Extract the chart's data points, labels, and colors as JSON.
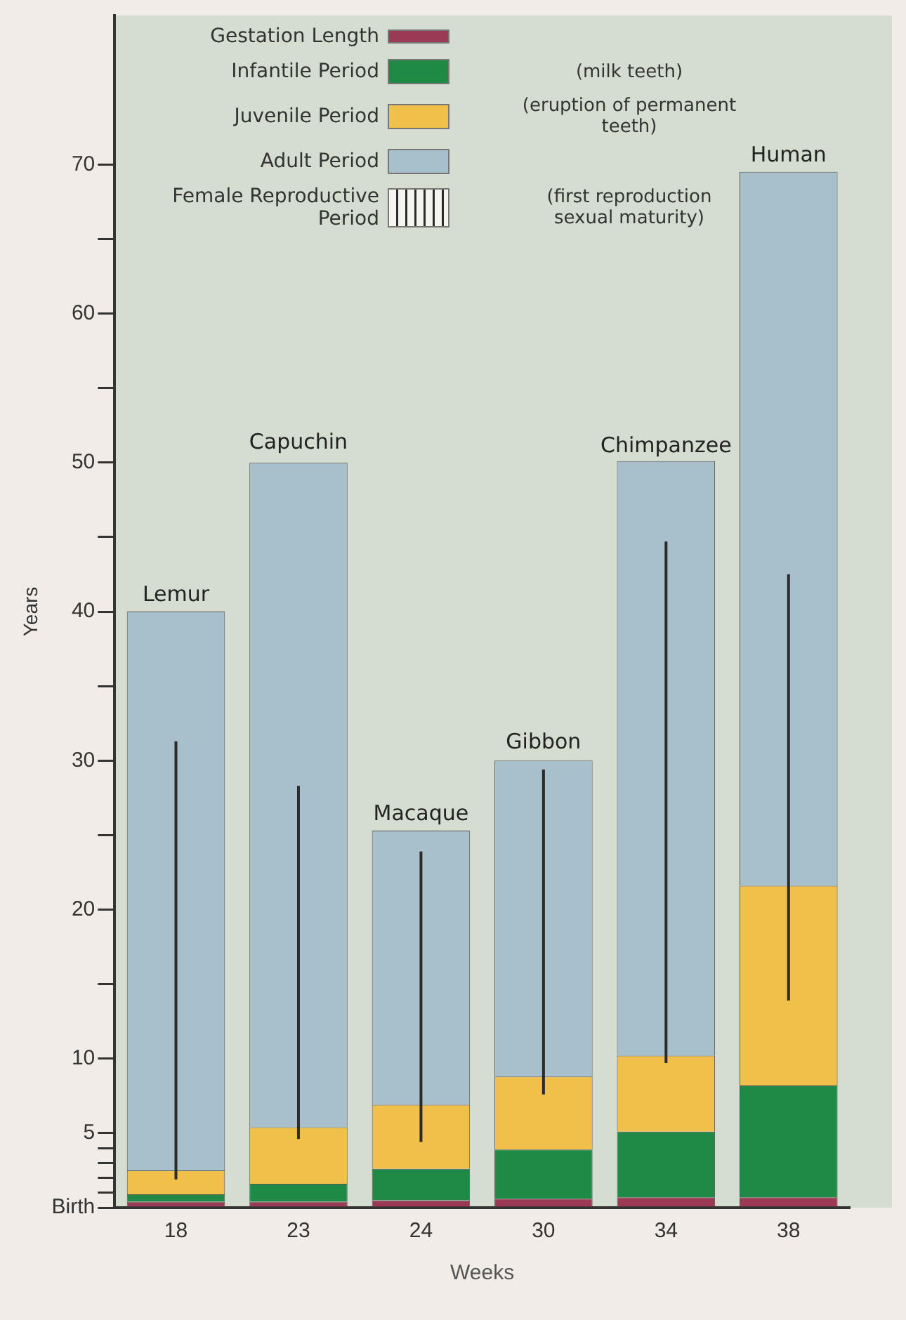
{
  "chart_data": {
    "type": "bar",
    "stacked": true,
    "xlabel": "Weeks",
    "ylabel": "Years",
    "categories": [
      "18",
      "23",
      "24",
      "30",
      "34",
      "38"
    ],
    "ylim": [
      0,
      80
    ],
    "yticks": [
      {
        "value": 0,
        "label": "Birth"
      },
      {
        "value": 1,
        "label": null
      },
      {
        "value": 2,
        "label": null
      },
      {
        "value": 3,
        "label": null
      },
      {
        "value": 4,
        "label": null
      },
      5,
      10,
      {
        "value": 15,
        "label": null
      },
      20,
      {
        "value": 25,
        "label": null
      },
      30,
      {
        "value": 35,
        "label": null
      },
      40,
      {
        "value": 45,
        "label": null
      },
      50,
      {
        "value": 55,
        "label": null
      },
      60,
      {
        "value": 65,
        "label": null
      },
      70
    ],
    "series": [
      {
        "name": "Gestation Length",
        "color": "#9b3a55",
        "values": [
          0.4,
          0.4,
          0.5,
          0.6,
          0.7,
          0.7
        ]
      },
      {
        "name": "Infantile Period",
        "color": "#1e8a45",
        "values": [
          0.5,
          1.2,
          2.1,
          3.3,
          4.4,
          7.5
        ]
      },
      {
        "name": "Juvenile Period",
        "color": "#f0c04a",
        "values": [
          1.6,
          3.8,
          4.3,
          4.9,
          5.1,
          13.4
        ]
      },
      {
        "name": "Adult Period",
        "color": "#a8bfcc",
        "values": [
          37.5,
          44.6,
          18.4,
          21.2,
          39.9,
          47.9
        ],
        "errors": [
          [
            1.9,
            31.3
          ],
          [
            4.6,
            28.3
          ],
          [
            4.4,
            23.9
          ],
          [
            7.6,
            29.4
          ],
          [
            9.7,
            44.7
          ],
          [
            13.9,
            42.5
          ]
        ]
      }
    ],
    "annotations": [
      "Female Reproductive Period",
      "(milk teeth)",
      "(eruption of permanent teeth)",
      "(first reproduction sexual maturity)",
      {
        "text": "Lemur",
        "x": "18",
        "y": 40
      },
      {
        "text": "Capuchin",
        "x": "23",
        "y": 50.2
      },
      {
        "text": "Macaque",
        "x": "24",
        "y": 25.3
      },
      {
        "text": "Gibbon",
        "x": "30",
        "y": 30.1
      },
      {
        "text": "Chimpanzee",
        "x": "34",
        "y": 50
      },
      {
        "text": "Human",
        "x": "38",
        "y": 69.5
      }
    ],
    "legend": "top",
    "grid": false
  }
}
